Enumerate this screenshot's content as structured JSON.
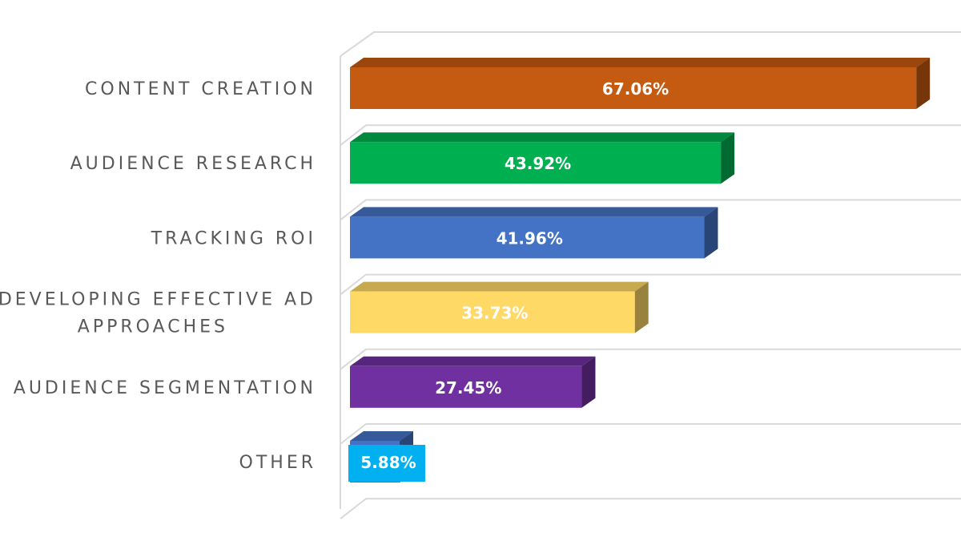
{
  "chart_data": {
    "type": "bar",
    "orientation": "horizontal",
    "style": "3d",
    "categories": [
      [
        "CONTENT CREATION"
      ],
      [
        "AUDIENCE RESEARCH"
      ],
      [
        "TRACKING ROI"
      ],
      [
        "DEVELOPING EFFECTIVE AD",
        "APPROACHES"
      ],
      [
        "AUDIENCE SEGMENTATION"
      ],
      [
        "OTHER"
      ]
    ],
    "values": [
      67.06,
      43.92,
      41.96,
      33.73,
      27.45,
      5.88
    ],
    "data_labels": [
      "67.06%",
      "43.92%",
      "41.96%",
      "33.73%",
      "27.45%",
      "5.88%"
    ],
    "colors": [
      "#c55a11",
      "#00b050",
      "#4472c4",
      "#ffd966",
      "#7030a0",
      "#4472c4"
    ],
    "label_highlight": [
      "",
      "",
      "",
      "",
      "",
      "#00b0f0"
    ],
    "xlim": [
      0,
      100
    ],
    "grid": true,
    "legend": "none"
  }
}
